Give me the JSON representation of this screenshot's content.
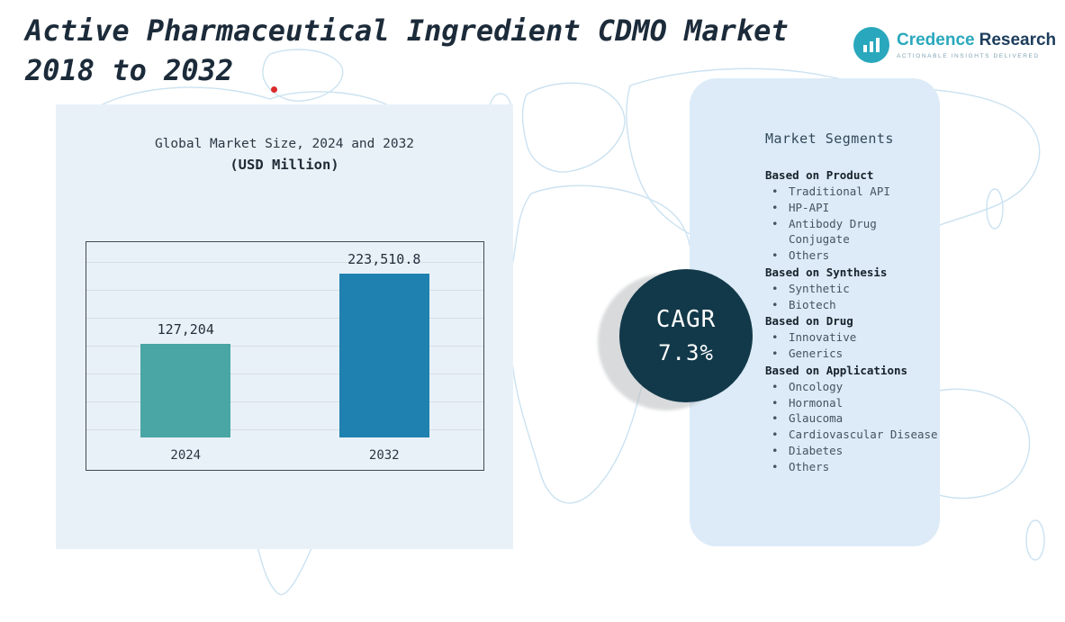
{
  "page": {
    "title_line1": "Active Pharmaceutical Ingredient CDMO Market",
    "title_line2": "2018 to 2032"
  },
  "logo": {
    "brand_primary": "Credence",
    "brand_secondary": "Research",
    "tagline": "Actionable Insights Delivered",
    "icon": "bar-chart-icon"
  },
  "chart_data": {
    "type": "bar",
    "title": "Global Market Size, 2024 and 2032",
    "subtitle": "(USD Million)",
    "categories": [
      "2024",
      "2032"
    ],
    "values": [
      127204,
      223510.8
    ],
    "value_labels": [
      "127,204",
      "223,510.8"
    ],
    "bar_colors": [
      "#4aa6a4",
      "#1e81af"
    ],
    "ylabel": "",
    "xlabel": "",
    "ylim": [
      0,
      260000
    ],
    "grid": true,
    "legend": "none"
  },
  "cagr": {
    "label": "CAGR",
    "value": "7.3%",
    "bg": "#12394a",
    "text_color": "#ffffff"
  },
  "segments": {
    "title": "Market Segments",
    "groups": [
      {
        "heading": "Based on Product",
        "items": [
          "Traditional API",
          "HP-API",
          "Antibody Drug Conjugate",
          "Others"
        ]
      },
      {
        "heading": "Based on Synthesis",
        "items": [
          "Synthetic",
          "Biotech"
        ]
      },
      {
        "heading": "Based on Drug",
        "items": [
          "Innovative",
          "Generics"
        ]
      },
      {
        "heading": "Based on Applications",
        "items": [
          "Oncology",
          "Hormonal",
          "Glaucoma",
          "Cardiovascular Disease",
          "Diabetes",
          "Others"
        ]
      }
    ]
  },
  "colors": {
    "panel_light_blue": "#e9f1f8",
    "segments_panel_blue": "#dcebf7",
    "map_outline": "#cbe2f1",
    "title_navy": "#1c2b3a",
    "brand_teal": "#29a8bd",
    "brand_navy": "#1d3d5c",
    "marker_red": "#d92b2b"
  }
}
